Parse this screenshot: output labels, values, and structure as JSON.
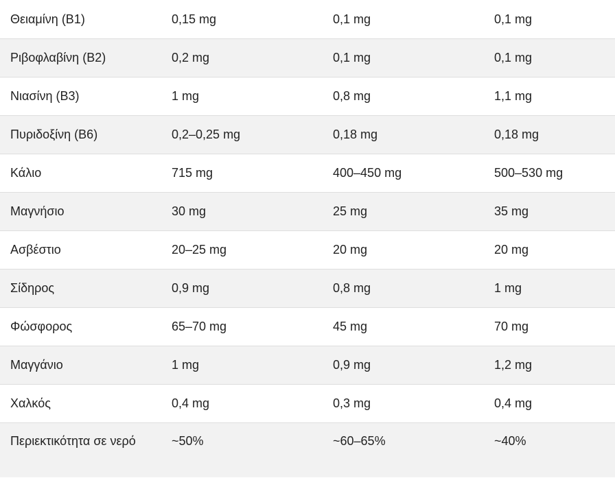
{
  "rows": [
    {
      "name": "Θειαμίνη (Β1)",
      "v1": "0,15 mg",
      "v2": "0,1 mg",
      "v3": "0,1 mg"
    },
    {
      "name": "Ριβοφλαβίνη (Β2)",
      "v1": "0,2 mg",
      "v2": "0,1 mg",
      "v3": "0,1 mg"
    },
    {
      "name": "Νιασίνη (Β3)",
      "v1": "1 mg",
      "v2": "0,8 mg",
      "v3": "1,1 mg"
    },
    {
      "name": "Πυριδοξίνη (Β6)",
      "v1": "0,2–0,25 mg",
      "v2": "0,18 mg",
      "v3": "0,18 mg"
    },
    {
      "name": "Κάλιο",
      "v1": "715 mg",
      "v2": "400–450 mg",
      "v3": "500–530 mg"
    },
    {
      "name": "Μαγνήσιο",
      "v1": "30 mg",
      "v2": "25 mg",
      "v3": "35 mg"
    },
    {
      "name": "Ασβέστιο",
      "v1": "20–25 mg",
      "v2": "20 mg",
      "v3": "20 mg"
    },
    {
      "name": "Σίδηρος",
      "v1": "0,9 mg",
      "v2": "0,8 mg",
      "v3": "1 mg"
    },
    {
      "name": "Φώσφορος",
      "v1": "65–70 mg",
      "v2": "45 mg",
      "v3": "70 mg"
    },
    {
      "name": "Μαγγάνιο",
      "v1": "1 mg",
      "v2": "0,9 mg",
      "v3": "1,2 mg"
    },
    {
      "name": "Χαλκός",
      "v1": "0,4 mg",
      "v2": "0,3 mg",
      "v3": "0,4 mg"
    },
    {
      "name": "Περιεκτικότητα σε νερό",
      "v1": "~50%",
      "v2": "~60–65%",
      "v3": "~40%"
    }
  ]
}
